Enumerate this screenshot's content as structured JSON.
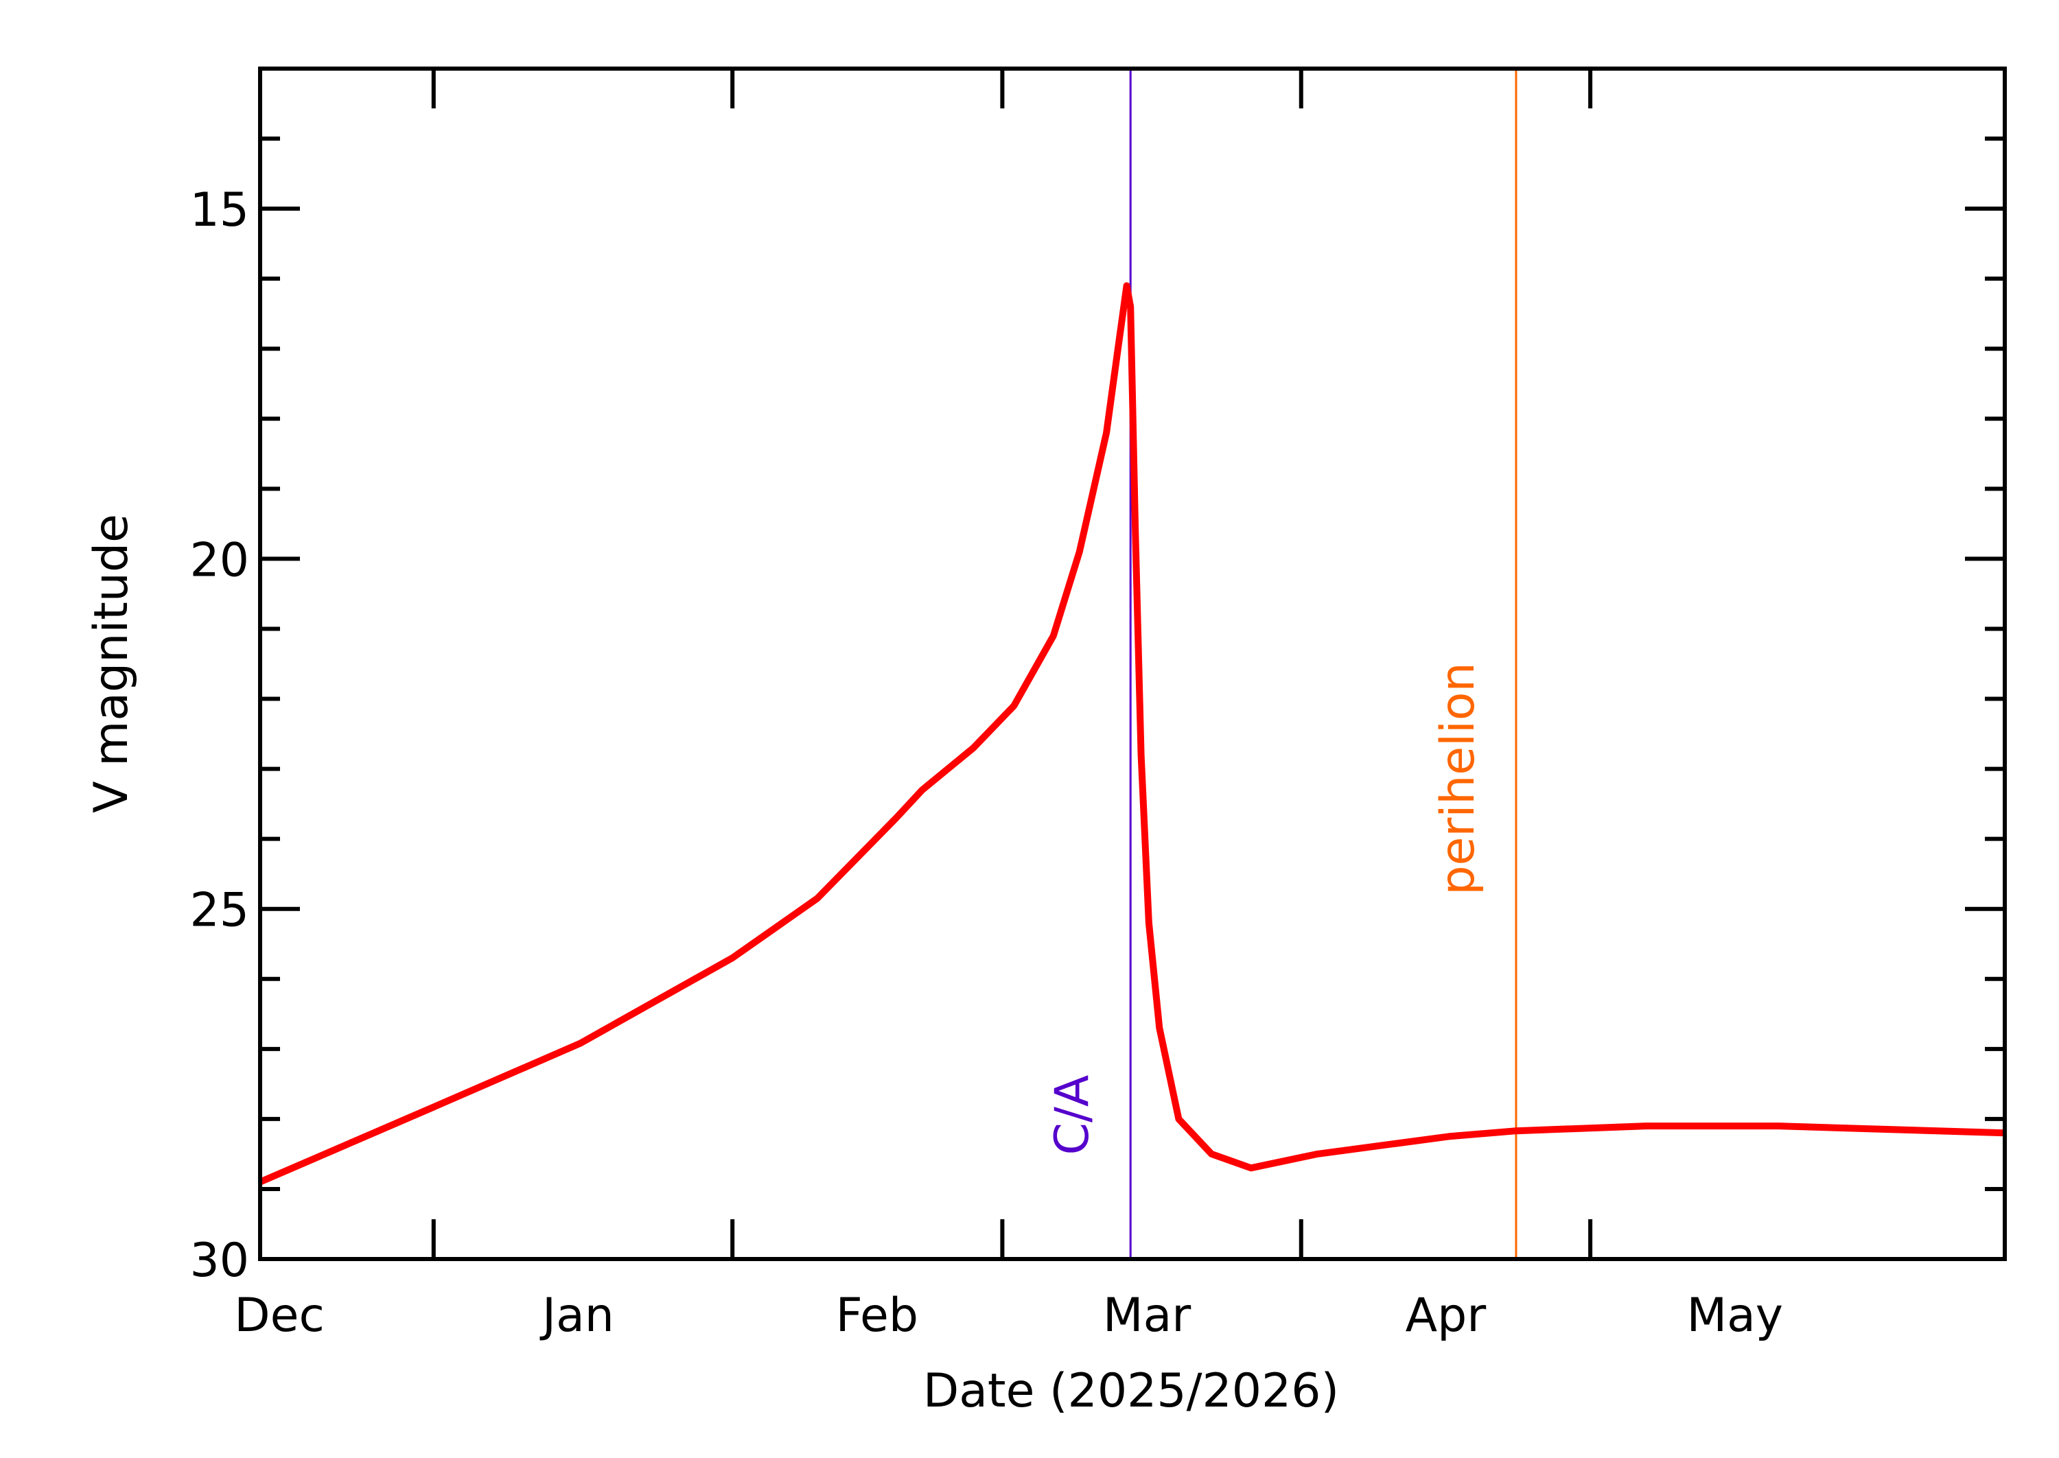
{
  "chart_data": {
    "type": "line",
    "xlabel": "Date (2025/2026)",
    "ylabel": "V magnitude",
    "x": [
      -18,
      0,
      15.2,
      31,
      39.8,
      48,
      50.7,
      56,
      60.2,
      64.3,
      67,
      69.8,
      70.9,
      71.9,
      72.3,
      72.8,
      73.4,
      74.2,
      75.3,
      77.3,
      80.7,
      84.8,
      91.7,
      105.3,
      112.3,
      125.8,
      139.5,
      163
    ],
    "series": [
      {
        "color": "#ff0000",
        "values": [
          28.9,
          27.83,
          26.92,
          25.7,
          24.85,
          23.7,
          23.3,
          22.7,
          22.1,
          21.1,
          19.9,
          18.2,
          17.1,
          16.1,
          16.4,
          19.6,
          22.8,
          25.2,
          26.7,
          28.0,
          28.5,
          28.7,
          28.5,
          28.25,
          28.17,
          28.1,
          28.1,
          28.2
        ]
      }
    ],
    "xlim": [
      -18,
      163
    ],
    "xticks": [
      {
        "value": -31,
        "label": "Dec"
      },
      {
        "value": 0,
        "label": "Jan"
      },
      {
        "value": 31,
        "label": "Feb"
      },
      {
        "value": 59,
        "label": "Mar"
      },
      {
        "value": 90,
        "label": "Apr"
      },
      {
        "value": 120,
        "label": "May"
      }
    ],
    "ylim": [
      30,
      13
    ],
    "yticks": [
      15,
      20,
      25,
      30
    ],
    "yminorticks": [
      13,
      14,
      16,
      17,
      18,
      19,
      21,
      22,
      23,
      24,
      26,
      27,
      28,
      29
    ],
    "markers": [
      {
        "label": "C/A",
        "x": 72.3,
        "color": "#5500cc"
      },
      {
        "label": "perihelion",
        "x": 112.3,
        "color": "#ff6600"
      }
    ]
  }
}
